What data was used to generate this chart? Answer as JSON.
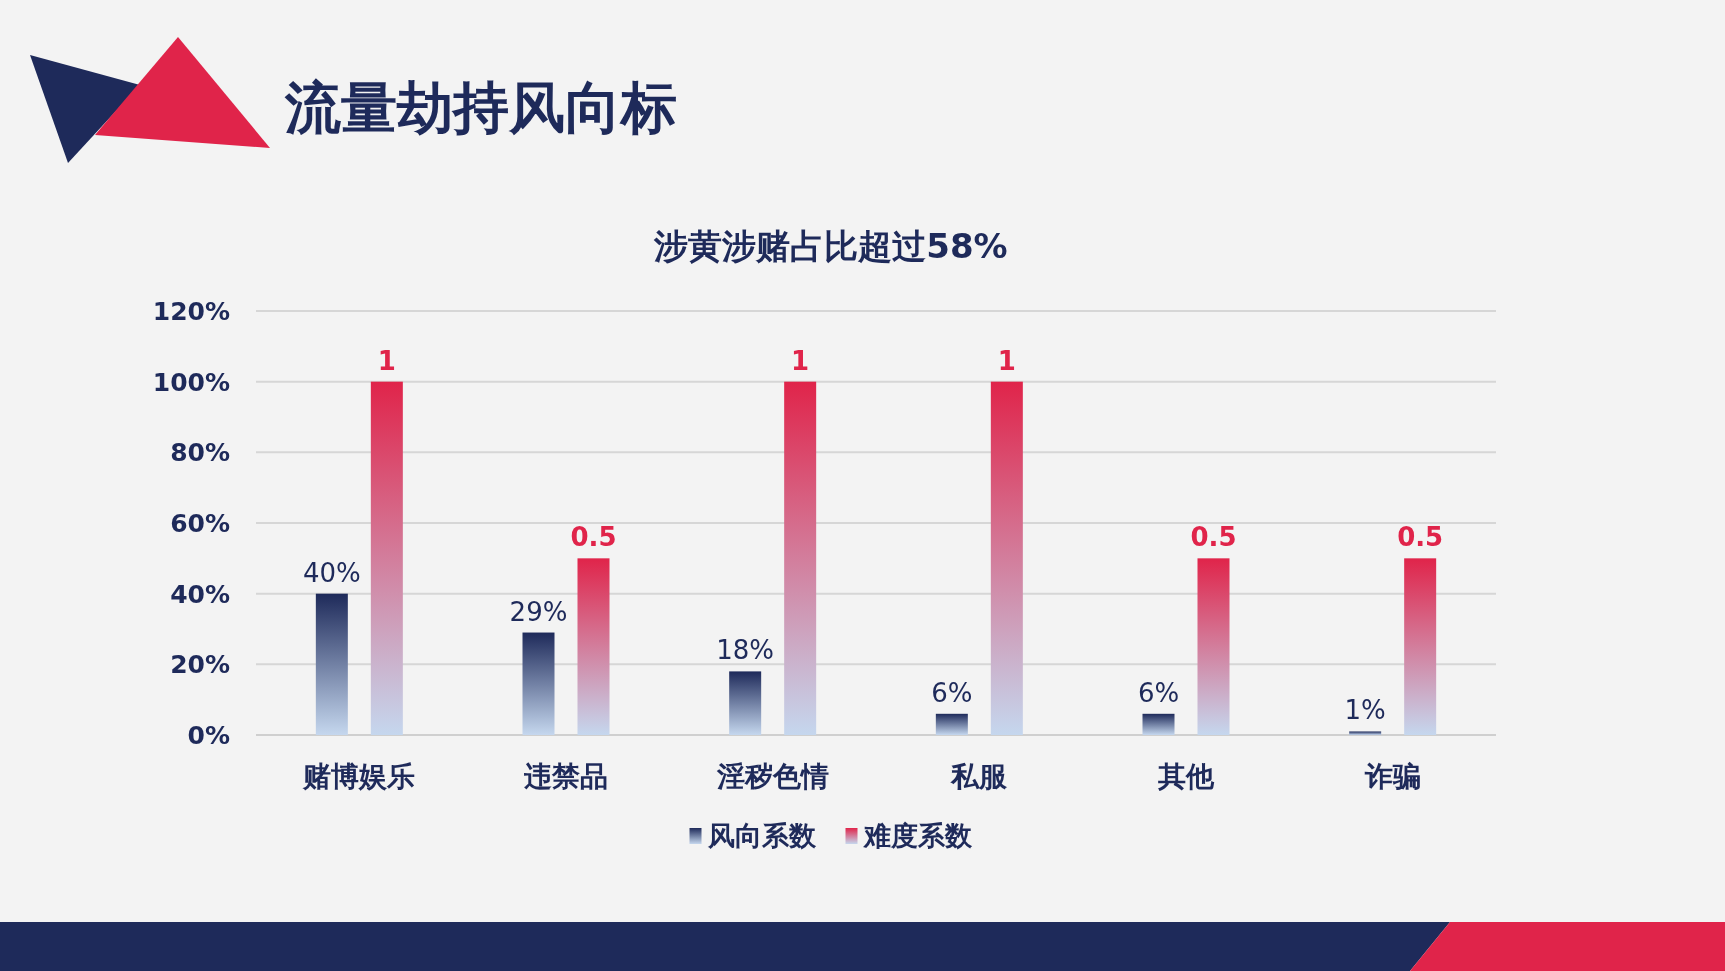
{
  "chart_data": {
    "type": "bar",
    "title": "流量劫持风向标",
    "subtitle": "涉黄涉赌占比超过58%",
    "categories": [
      "赌博娱乐",
      "违禁品",
      "淫秽色情",
      "私服",
      "其他",
      "诈骗"
    ],
    "series": [
      {
        "name": "风向系数",
        "color": "#1e2a5a",
        "values": [
          40,
          29,
          18,
          6,
          6,
          1
        ],
        "value_labels": [
          "40%",
          "29%",
          "18%",
          "6%",
          "6%",
          "1%"
        ]
      },
      {
        "name": "难度系数",
        "color": "#e0244a",
        "axis": "y2",
        "values": [
          1,
          0.5,
          1,
          1,
          0.5,
          0.5
        ],
        "data_labels": true
      }
    ],
    "ylim": [
      0,
      120
    ],
    "y2lim": [
      0,
      1.2
    ],
    "yticks": [
      {
        "value": 0,
        "label": "0%"
      },
      {
        "value": 20,
        "label": "20%"
      },
      {
        "value": 40,
        "label": "40%"
      },
      {
        "value": 60,
        "label": "60%"
      },
      {
        "value": 80,
        "label": "80%"
      },
      {
        "value": 100,
        "label": "100%"
      },
      {
        "value": 120,
        "label": "120%"
      }
    ],
    "grid": "y",
    "legend": "bottom"
  }
}
